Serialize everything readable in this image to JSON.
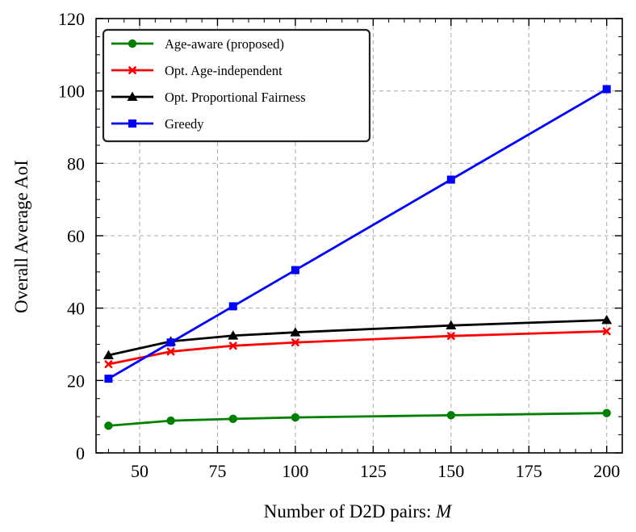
{
  "chart_data": {
    "type": "line",
    "title": "",
    "xlabel": "Number of D2D pairs: ",
    "xlabel_var": "M",
    "ylabel": "Overall Average AoI",
    "xlim": [
      36,
      205
    ],
    "ylim": [
      0,
      120
    ],
    "xticks": [
      50,
      75,
      100,
      125,
      150,
      175,
      200
    ],
    "yticks": [
      0,
      20,
      40,
      60,
      80,
      100,
      120
    ],
    "grid": true,
    "legend_position": "top-left",
    "x": [
      40,
      60,
      80,
      100,
      150,
      200
    ],
    "series": [
      {
        "name": "Age-aware (proposed)",
        "color": "#008000",
        "marker": "circle",
        "values": [
          7.5,
          8.9,
          9.4,
          9.8,
          10.4,
          11.0
        ]
      },
      {
        "name": "Opt. Age-independent",
        "color": "#ff0000",
        "marker": "x",
        "values": [
          24.5,
          28.0,
          29.6,
          30.5,
          32.3,
          33.6
        ]
      },
      {
        "name": "Opt. Proportional Fairness",
        "color": "#000000",
        "marker": "triangle",
        "values": [
          27.0,
          30.8,
          32.4,
          33.3,
          35.2,
          36.7
        ]
      },
      {
        "name": "Greedy",
        "color": "#0000ff",
        "marker": "square",
        "values": [
          20.5,
          30.5,
          40.5,
          50.5,
          75.5,
          100.5
        ]
      }
    ]
  }
}
